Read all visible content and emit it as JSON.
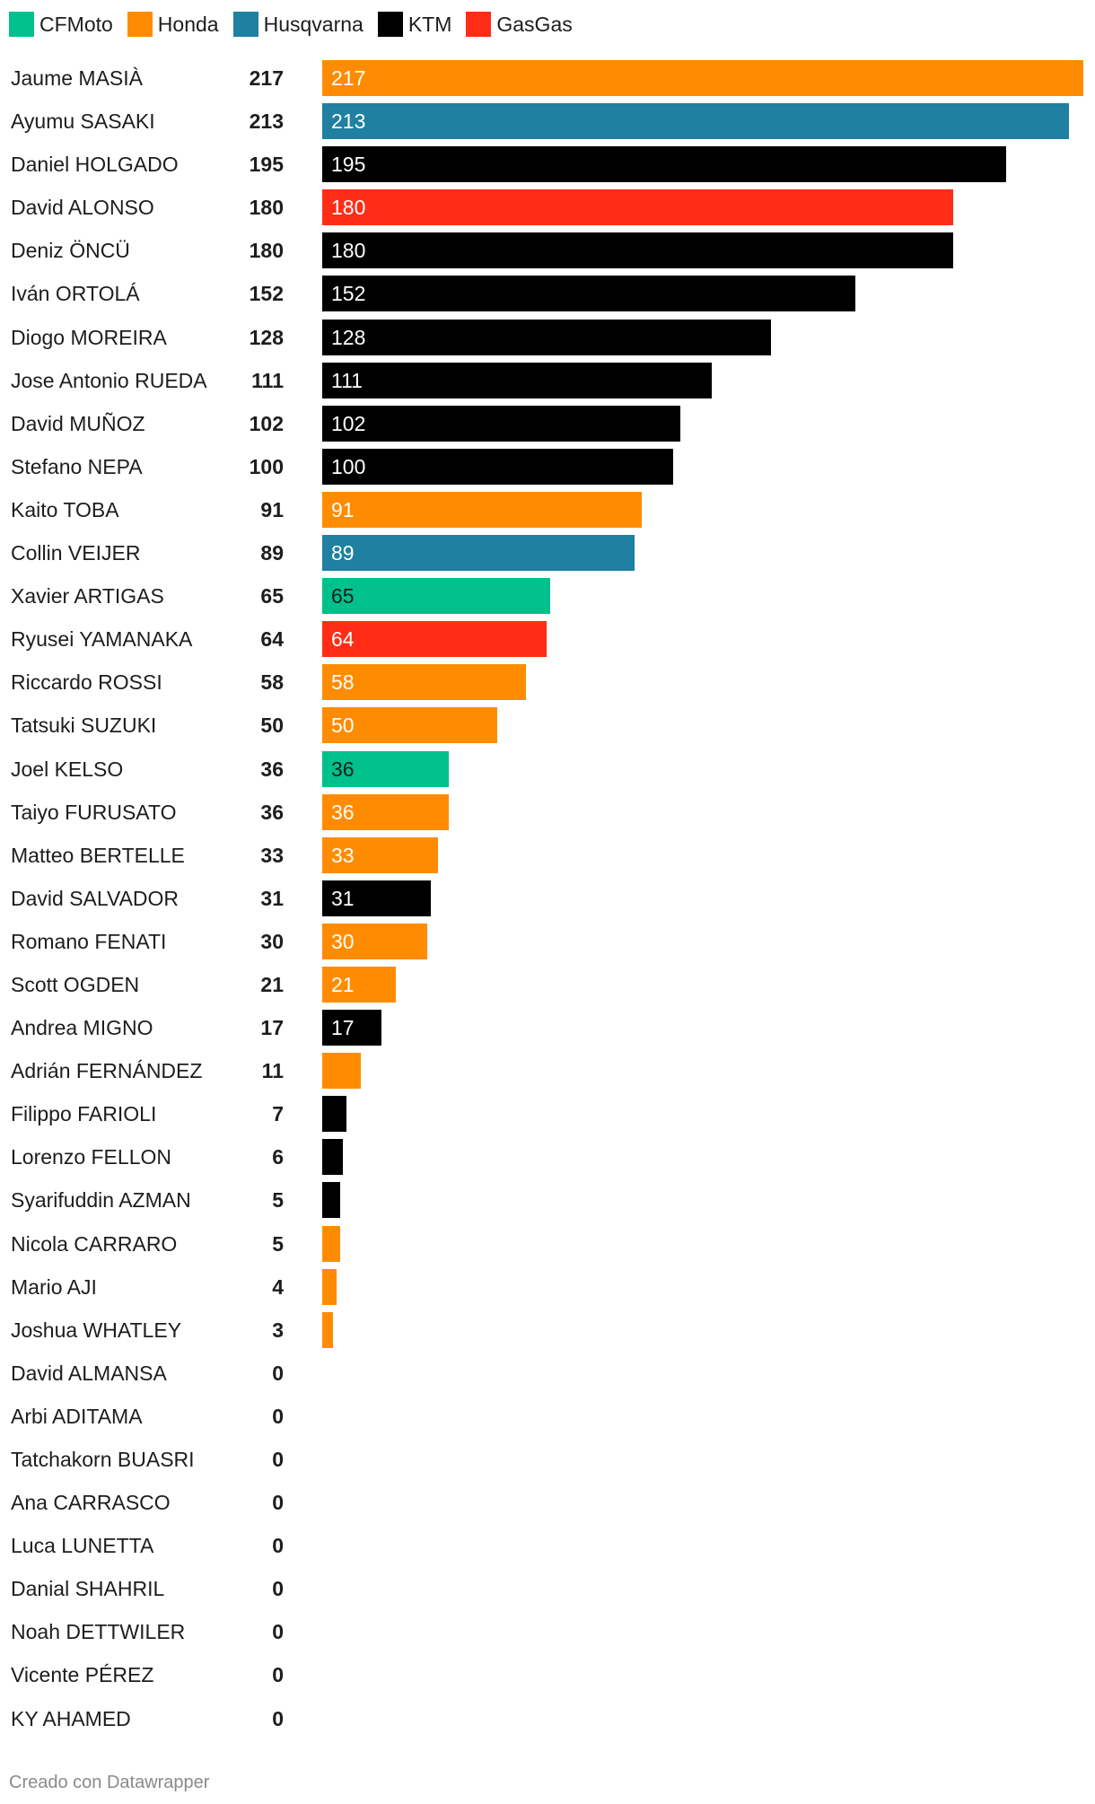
{
  "legend": [
    {
      "label": "CFMoto",
      "color": "#00c08b"
    },
    {
      "label": "Honda",
      "color": "#ff8c00"
    },
    {
      "label": "Husqvarna",
      "color": "#1f80a1"
    },
    {
      "label": "KTM",
      "color": "#000000"
    },
    {
      "label": "GasGas",
      "color": "#ff2d16"
    }
  ],
  "chart_data": {
    "type": "bar",
    "orientation": "horizontal",
    "xlim": [
      0,
      217
    ],
    "categories": [
      "Jaume MASIÀ",
      "Ayumu SASAKI",
      "Daniel HOLGADO",
      "David ALONSO",
      "Deniz ÖNCÜ",
      "Iván ORTOLÁ",
      "Diogo MOREIRA",
      "Jose Antonio RUEDA",
      "David MUÑOZ",
      "Stefano NEPA",
      "Kaito TOBA",
      "Collin VEIJER",
      "Xavier ARTIGAS",
      "Ryusei YAMANAKA",
      "Riccardo ROSSI",
      "Tatsuki SUZUKI",
      "Joel KELSO",
      "Taiyo FURUSATO",
      "Matteo BERTELLE",
      "David SALVADOR",
      "Romano FENATI",
      "Scott OGDEN",
      "Andrea MIGNO",
      "Adrián FERNÁNDEZ",
      "Filippo FARIOLI",
      "Lorenzo FELLON",
      "Syarifuddin AZMAN",
      "Nicola CARRARO",
      "Mario AJI",
      "Joshua WHATLEY",
      "David ALMANSA",
      "Arbi ADITAMA",
      "Tatchakorn BUASRI",
      "Ana CARRASCO",
      "Luca LUNETTA",
      "Danial SHAHRIL",
      "Noah DETTWILER",
      "Vicente PÉREZ",
      "KY AHAMED"
    ],
    "values": [
      217,
      213,
      195,
      180,
      180,
      152,
      128,
      111,
      102,
      100,
      91,
      89,
      65,
      64,
      58,
      50,
      36,
      36,
      33,
      31,
      30,
      21,
      17,
      11,
      7,
      6,
      5,
      5,
      4,
      3,
      0,
      0,
      0,
      0,
      0,
      0,
      0,
      0,
      0
    ],
    "brands": [
      "Honda",
      "Husqvarna",
      "KTM",
      "GasGas",
      "KTM",
      "KTM",
      "KTM",
      "KTM",
      "KTM",
      "KTM",
      "Honda",
      "Husqvarna",
      "CFMoto",
      "GasGas",
      "Honda",
      "Honda",
      "CFMoto",
      "Honda",
      "Honda",
      "KTM",
      "Honda",
      "Honda",
      "KTM",
      "Honda",
      "KTM",
      "KTM",
      "KTM",
      "Honda",
      "Honda",
      "Honda",
      "",
      "",
      "",
      "",
      "",
      "",
      "",
      "",
      ""
    ],
    "label_inside_min": 12,
    "label_colors": {
      "CFMoto": "#1d1d1d",
      "default": "#ffffff"
    }
  },
  "footer": {
    "credit": "Creado con Datawrapper"
  }
}
